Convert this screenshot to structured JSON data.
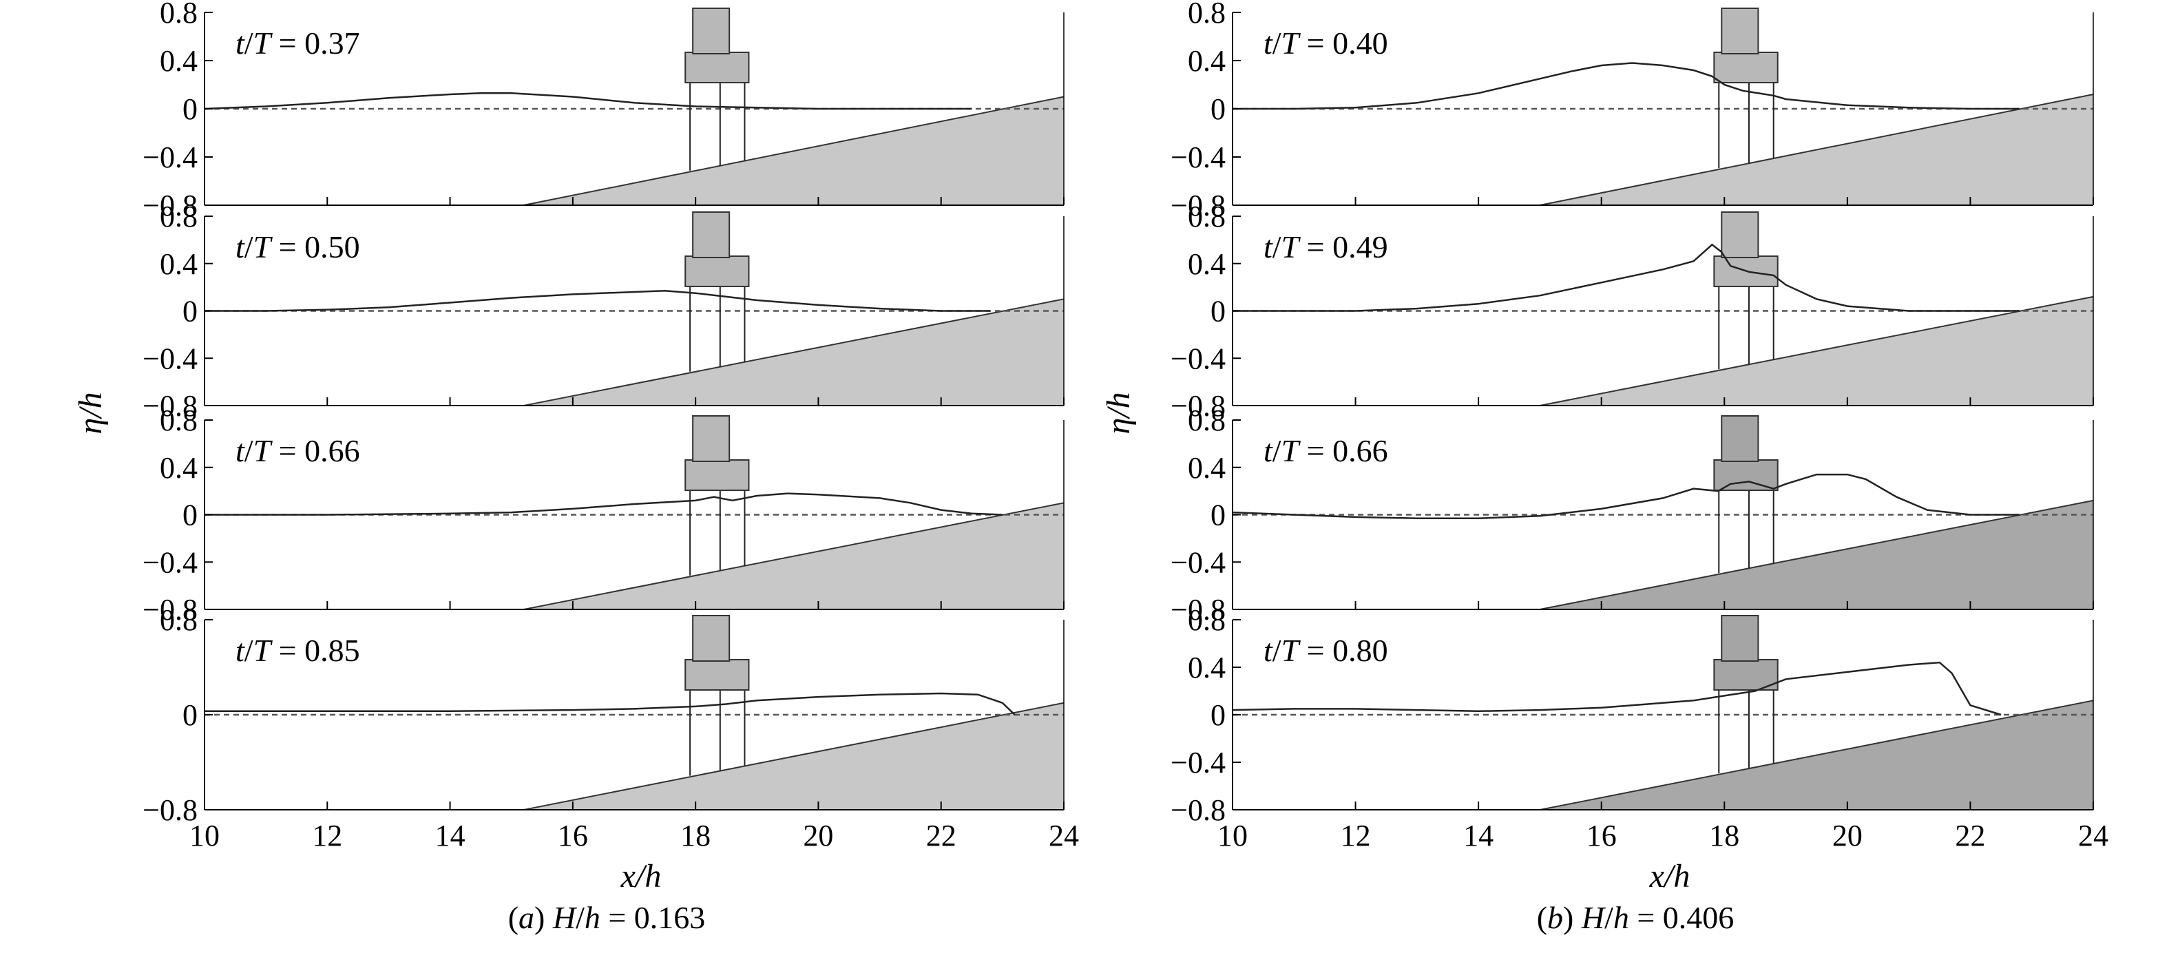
{
  "figure": {
    "ylabel": "η/h",
    "xlabel": "x/h",
    "x_ticks": [
      "10",
      "12",
      "14",
      "16",
      "18",
      "20",
      "22",
      "24"
    ],
    "y_ticks_default": [
      "0.8",
      "0.4",
      "0",
      "−0.4",
      "−0.8"
    ],
    "y_ticks_sparse": [
      "0.8",
      "0",
      "−0.8"
    ],
    "colors": {
      "slope_light": "#c8c8c8",
      "slope_dark": "#a8a8a8",
      "structure": "#b8b8b8",
      "line": "#222222"
    }
  },
  "chart_data": [
    {
      "type": "line",
      "caption": "(a) H/h = 0.163",
      "xlabel": "x/h",
      "ylabel": "η/h",
      "xlim": [
        10,
        24
      ],
      "ylim": [
        -0.8,
        0.8
      ],
      "slope": {
        "x_start": 15.2,
        "x_end": 24,
        "y_at_end": 0.1
      },
      "structure": {
        "x_left": 17.9,
        "x_right": 18.8,
        "piles": [
          18.0,
          18.4,
          18.8
        ]
      },
      "panels": [
        {
          "label": "t/T = 0.37",
          "y_ticks": [
            "0.8",
            "0.4",
            "0",
            "−0.4",
            "−0.8"
          ],
          "x": [
            10,
            11,
            12,
            13,
            14,
            14.5,
            15,
            16,
            17,
            18,
            19,
            20,
            21,
            22,
            22.5
          ],
          "y": [
            0.0,
            0.02,
            0.05,
            0.09,
            0.12,
            0.13,
            0.13,
            0.1,
            0.05,
            0.02,
            0.01,
            0.0,
            0.0,
            0.0,
            0.0
          ]
        },
        {
          "label": "t/T = 0.50",
          "y_ticks": [
            "0.8",
            "0.4",
            "0",
            "−0.4",
            "−0.8"
          ],
          "x": [
            10,
            11,
            12,
            13,
            14,
            15,
            16,
            17,
            17.5,
            18,
            18.5,
            19,
            20,
            21,
            22,
            22.8
          ],
          "y": [
            0.0,
            0.0,
            0.01,
            0.03,
            0.07,
            0.11,
            0.14,
            0.16,
            0.17,
            0.15,
            0.12,
            0.09,
            0.05,
            0.02,
            0.0,
            0.0
          ]
        },
        {
          "label": "t/T = 0.66",
          "y_ticks": [
            "0.8",
            "0.4",
            "0",
            "−0.4",
            "−0.8"
          ],
          "x": [
            10,
            12,
            14,
            15,
            16,
            17,
            18,
            18.3,
            18.6,
            19,
            19.5,
            20,
            21,
            21.5,
            22,
            22.5,
            23
          ],
          "y": [
            0.0,
            0.0,
            0.01,
            0.02,
            0.05,
            0.09,
            0.12,
            0.15,
            0.12,
            0.16,
            0.18,
            0.17,
            0.14,
            0.1,
            0.04,
            0.01,
            0.0
          ]
        },
        {
          "label": "t/T = 0.85",
          "y_ticks": [
            "0.8",
            "0",
            "−0.8"
          ],
          "x": [
            10,
            12,
            14,
            16,
            17,
            18,
            18.5,
            19,
            20,
            21,
            22,
            22.6,
            23,
            23.2
          ],
          "y": [
            0.03,
            0.03,
            0.03,
            0.04,
            0.05,
            0.07,
            0.09,
            0.12,
            0.15,
            0.17,
            0.18,
            0.17,
            0.1,
            0.0
          ]
        }
      ]
    },
    {
      "type": "line",
      "caption": "(b) H/h = 0.406",
      "xlabel": "x/h",
      "ylabel": "η/h",
      "xlim": [
        10,
        24
      ],
      "ylim": [
        -0.8,
        0.8
      ],
      "slope": {
        "x_start": 15.0,
        "x_end": 24,
        "y_at_end": 0.12
      },
      "structure": {
        "x_left": 17.9,
        "x_right": 18.8,
        "piles": [
          18.0,
          18.4,
          18.8
        ]
      },
      "panels": [
        {
          "label": "t/T = 0.40",
          "y_ticks": [
            "0.8",
            "0.4",
            "0",
            "−0.4",
            "−0.8"
          ],
          "x": [
            10,
            11,
            12,
            13,
            14,
            15,
            15.5,
            16,
            16.5,
            17,
            17.5,
            17.8,
            18,
            18.3,
            18.8,
            19,
            20,
            21,
            22,
            22.8
          ],
          "y": [
            0.0,
            0.0,
            0.01,
            0.05,
            0.13,
            0.25,
            0.31,
            0.36,
            0.38,
            0.36,
            0.32,
            0.27,
            0.2,
            0.15,
            0.11,
            0.08,
            0.03,
            0.01,
            0.0,
            0.0
          ]
        },
        {
          "label": "t/T = 0.49",
          "y_ticks": [
            "0.8",
            "0.4",
            "0",
            "−0.4",
            "−0.8"
          ],
          "x": [
            10,
            12,
            13,
            14,
            15,
            16,
            17,
            17.5,
            17.8,
            17.95,
            18.1,
            18.4,
            18.8,
            19,
            19.5,
            20,
            21,
            22,
            22.8
          ],
          "y": [
            0.0,
            0.0,
            0.02,
            0.06,
            0.13,
            0.24,
            0.35,
            0.42,
            0.56,
            0.5,
            0.38,
            0.33,
            0.3,
            0.22,
            0.1,
            0.04,
            0.0,
            0.0,
            0.0
          ]
        },
        {
          "label": "t/T = 0.66",
          "y_ticks": [
            "0.8",
            "0.4",
            "0",
            "−0.4",
            "−0.8"
          ],
          "x": [
            10,
            11,
            12,
            13,
            14,
            15,
            16,
            17,
            17.5,
            17.9,
            18.1,
            18.4,
            18.8,
            19,
            19.5,
            20,
            20.3,
            20.8,
            21.3,
            22,
            22.8
          ],
          "y": [
            0.02,
            0.0,
            -0.02,
            -0.03,
            -0.03,
            -0.01,
            0.05,
            0.14,
            0.22,
            0.2,
            0.26,
            0.28,
            0.22,
            0.26,
            0.34,
            0.34,
            0.3,
            0.15,
            0.04,
            0.0,
            0.0
          ]
        },
        {
          "label": "t/T = 0.80",
          "y_ticks": [
            "0.8",
            "0.4",
            "0",
            "−0.4",
            "−0.8"
          ],
          "x": [
            10,
            11,
            12,
            13,
            14,
            15,
            16,
            17,
            17.5,
            18,
            18.5,
            19,
            20,
            21,
            21.5,
            21.7,
            22,
            22.5
          ],
          "y": [
            0.04,
            0.05,
            0.05,
            0.04,
            0.03,
            0.04,
            0.06,
            0.1,
            0.12,
            0.16,
            0.2,
            0.3,
            0.36,
            0.42,
            0.44,
            0.35,
            0.08,
            0.0
          ]
        }
      ]
    }
  ]
}
